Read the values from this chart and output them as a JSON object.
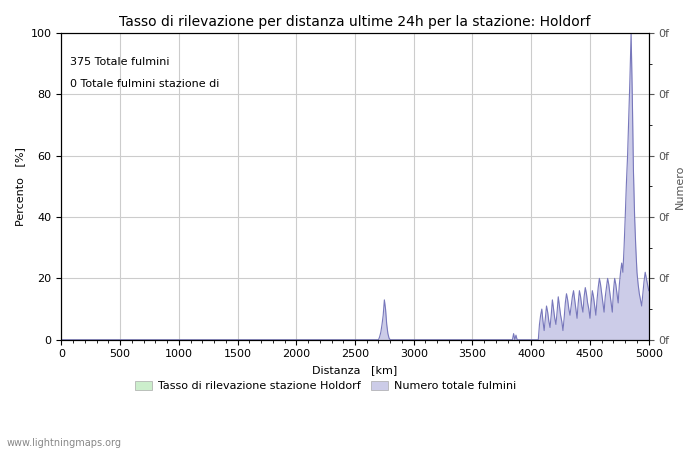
{
  "title": "Tasso di rilevazione per distanza ultime 24h per la stazione: Holdorf",
  "xlabel": "Distanza   [km]",
  "ylabel_left": "Percento   [%]",
  "ylabel_right": "Numero",
  "annotation_line1": "375 Totale fulmini",
  "annotation_line2": "0 Totale fulmini stazione di",
  "legend_label1": "Tasso di rilevazione stazione Holdorf",
  "legend_label2": "Numero totale fulmini",
  "watermark": "www.lightningmaps.org",
  "xlim": [
    0,
    5000
  ],
  "ylim_left": [
    0,
    100
  ],
  "xticks": [
    0,
    500,
    1000,
    1500,
    2000,
    2500,
    3000,
    3500,
    4000,
    4500,
    5000
  ],
  "yticks_left": [
    0,
    20,
    40,
    60,
    80,
    100
  ],
  "fill_color_blue": "#cccce8",
  "line_color_blue": "#7777bb",
  "fill_color_green": "#cceecc",
  "line_color_green": "#88cc88",
  "background_color": "#ffffff",
  "grid_color": "#cccccc",
  "title_fontsize": 10,
  "label_fontsize": 8,
  "tick_fontsize": 8,
  "annot_fontsize": 8
}
